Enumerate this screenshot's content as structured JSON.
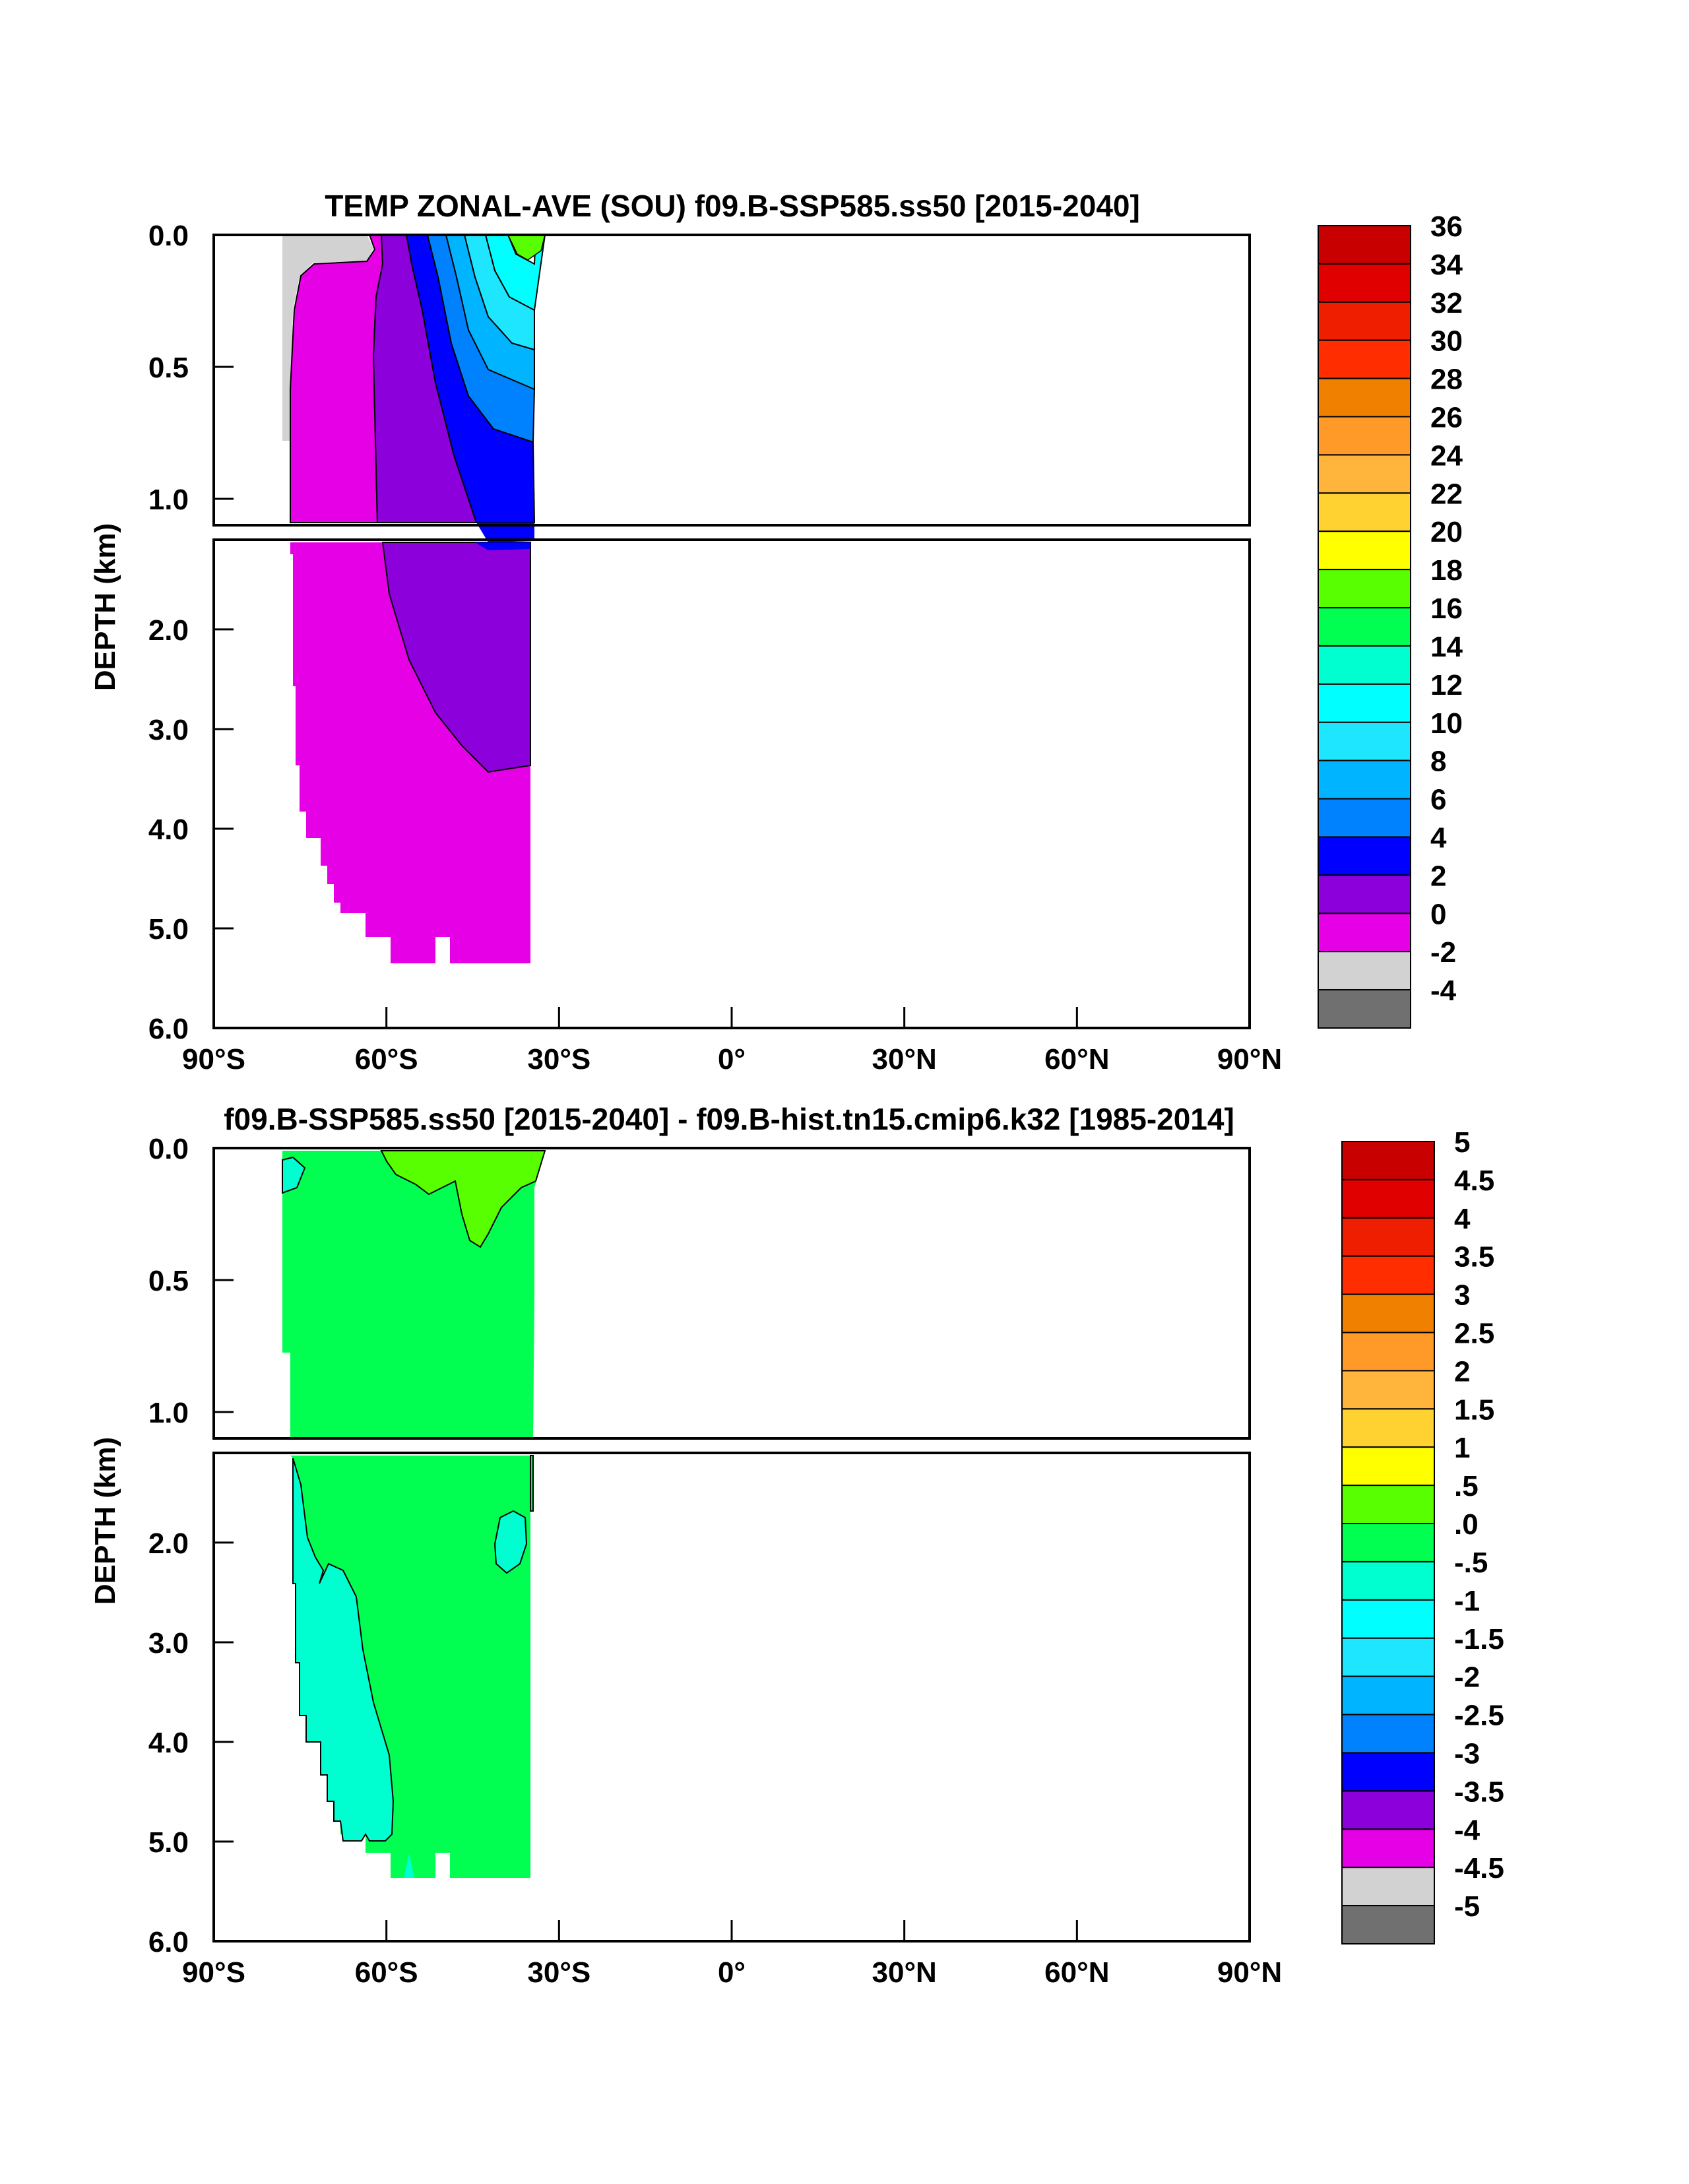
{
  "chart_data": [
    {
      "type": "heatmap",
      "title": "TEMP ZONAL-AVE (SOU) f09.B-SSP585.ss50 [2015-2040]",
      "xlabel": "",
      "ylabel": "DEPTH (km)",
      "xticks": [
        "90°S",
        "60°S",
        "30°S",
        "0°",
        "30°N",
        "60°N",
        "90°N"
      ],
      "xlim": [
        -90,
        90
      ],
      "upper_yticks": [
        "0.0",
        "0.5",
        "1.0"
      ],
      "lower_yticks": [
        "2.0",
        "3.0",
        "4.0",
        "5.0",
        "6.0"
      ],
      "ylim": [
        0,
        6
      ],
      "colorbar_labels": [
        "36",
        "34",
        "32",
        "30",
        "28",
        "26",
        "24",
        "22",
        "20",
        "18",
        "16",
        "14",
        "12",
        "10",
        "8",
        "6",
        "4",
        "2",
        "0",
        "-2",
        "-4"
      ],
      "colorbar_colors": [
        "#c80000",
        "#e00000",
        "#f01e00",
        "#ff2d00",
        "#f08000",
        "#ff9a28",
        "#ffb43c",
        "#ffd232",
        "#ffff00",
        "#58ff00",
        "#00ff50",
        "#00ffd0",
        "#00ffff",
        "#1ee6ff",
        "#00b4ff",
        "#0082ff",
        "#0000ff",
        "#8c00dc",
        "#e600e6",
        "#d2d2d2",
        "#707070"
      ],
      "region_colors": {
        "gray": "#d2d2d2",
        "magenta": "#e600e6",
        "purple": "#8c00dc",
        "blue": "#0000ff",
        "lightblue": "#0082ff",
        "skyblue": "#00b4ff",
        "cyan": "#1ee6ff",
        "aqua": "#00ffff",
        "green": "#58ff00"
      }
    },
    {
      "type": "heatmap",
      "title": "f09.B-SSP585.ss50 [2015-2040] - f09.B-hist.tn15.cmip6.k32 [1985-2014]",
      "xlabel": "",
      "ylabel": "DEPTH (km)",
      "xticks": [
        "90°S",
        "60°S",
        "30°S",
        "0°",
        "30°N",
        "60°N",
        "90°N"
      ],
      "xlim": [
        -90,
        90
      ],
      "upper_yticks": [
        "0.0",
        "0.5",
        "1.0"
      ],
      "lower_yticks": [
        "2.0",
        "3.0",
        "4.0",
        "5.0",
        "6.0"
      ],
      "ylim": [
        0,
        6
      ],
      "colorbar_labels": [
        "5",
        "4.5",
        "4",
        "3.5",
        "3",
        "2.5",
        "2",
        "1.5",
        "1",
        ".5",
        ".0",
        "-.5",
        "-1",
        "-1.5",
        "-2",
        "-2.5",
        "-3",
        "-3.5",
        "-4",
        "-4.5",
        "-5"
      ],
      "colorbar_colors": [
        "#c80000",
        "#e00000",
        "#f01e00",
        "#ff2d00",
        "#f08000",
        "#ff9a28",
        "#ffb43c",
        "#ffd232",
        "#ffff00",
        "#58ff00",
        "#00ff50",
        "#00ffd0",
        "#00ffff",
        "#1ee6ff",
        "#00b4ff",
        "#0082ff",
        "#0000ff",
        "#8c00dc",
        "#e600e6",
        "#d2d2d2",
        "#707070"
      ],
      "region_colors": {
        "green": "#00ff50",
        "lightgreen": "#58ff00",
        "teal": "#00ffd0"
      }
    }
  ]
}
